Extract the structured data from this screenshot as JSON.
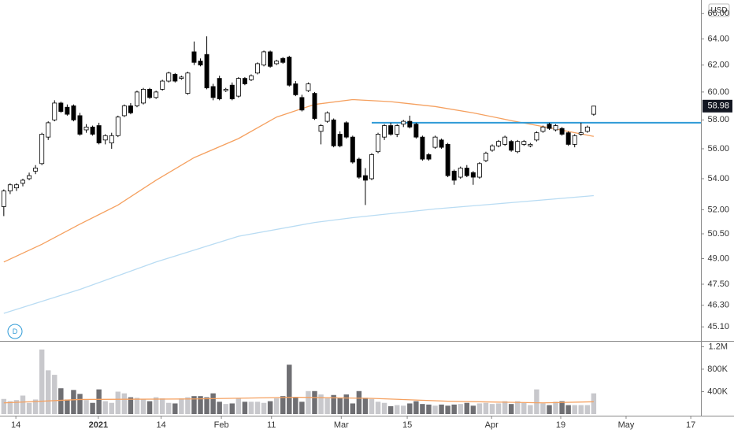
{
  "chart_data": {
    "type": "candlestick",
    "currency": "USD",
    "interval": "D",
    "log_scale": true,
    "grid": false,
    "last_price": 58.98,
    "xlim": [
      -0.6,
      109.9
    ],
    "xticks": [
      {
        "value": 1.9,
        "label": "14"
      },
      {
        "value": 14.9,
        "label": "2021"
      },
      {
        "value": 24.8,
        "label": "14"
      },
      {
        "value": 34.3,
        "label": "Feb"
      },
      {
        "value": 42.2,
        "label": "11"
      },
      {
        "value": 53.2,
        "label": "Mar"
      },
      {
        "value": 63.6,
        "label": "15"
      },
      {
        "value": 76.9,
        "label": "Apr"
      },
      {
        "value": 87.8,
        "label": "19"
      },
      {
        "value": 98.1,
        "label": "May"
      },
      {
        "value": 108.3,
        "label": "17"
      }
    ],
    "ylim": [
      44.38,
      67.1
    ],
    "yticks": [
      {
        "value": 45.1,
        "label": "45.10"
      },
      {
        "value": 46.3,
        "label": "46.30"
      },
      {
        "value": 47.5,
        "label": "47.50"
      },
      {
        "value": 49,
        "label": "49.00"
      },
      {
        "value": 50.5,
        "label": "50.50"
      },
      {
        "value": 52,
        "label": "52.00"
      },
      {
        "value": 54,
        "label": "54.00"
      },
      {
        "value": 56,
        "label": "56.00"
      },
      {
        "value": 58,
        "label": "58.00"
      },
      {
        "value": 60,
        "label": "60.00"
      },
      {
        "value": 62,
        "label": "62.00"
      },
      {
        "value": 64,
        "label": "64.00"
      },
      {
        "value": 66,
        "label": "66.00"
      }
    ],
    "up_color": "#ffffff",
    "down_color": "#000000",
    "open": [
      52.2,
      53.2,
      53.4,
      53.7,
      54.0,
      54.5,
      55.0,
      56.8,
      58.0,
      59.2,
      58.9,
      59.0,
      58.3,
      57.3,
      57.5,
      57.6,
      56.6,
      56.4,
      56.9,
      58.3,
      59.0,
      59.0,
      59.2,
      60.2,
      59.6,
      60.2,
      60.8,
      61.3,
      61.0,
      59.9,
      63.0,
      62.3,
      62.8,
      60.4,
      61.0,
      60.1,
      60.5,
      59.7,
      61.0,
      60.9,
      61.4,
      62.0,
      63.0,
      62.1,
      62.5,
      62.6,
      60.6,
      59.6,
      60.1,
      59.9,
      57.2,
      57.9,
      58.0,
      57.0,
      57.8,
      56.8,
      55.3,
      54.2,
      54.0,
      55.8,
      56.8,
      57.6,
      57.0,
      57.7,
      57.9,
      57.7,
      56.8,
      55.6,
      56.1,
      56.6,
      56.3,
      54.5,
      54.1,
      54.7,
      54.4,
      54.1,
      55.2,
      55.9,
      56.2,
      56.3,
      56.5,
      55.8,
      56.3,
      56.2,
      56.6,
      57.2,
      57.7,
      57.3,
      57.4,
      57.1,
      56.3,
      57.0,
      57.2,
      58.4
    ],
    "high": [
      53.3,
      53.7,
      53.7,
      54.0,
      54.4,
      54.9,
      57.1,
      57.9,
      59.4,
      59.3,
      59.1,
      59.1,
      58.5,
      57.7,
      57.6,
      57.8,
      57.0,
      57.1,
      58.3,
      59.1,
      59.2,
      60.1,
      60.3,
      60.3,
      60.1,
      60.9,
      61.5,
      61.4,
      61.2,
      61.5,
      63.8,
      62.5,
      64.2,
      60.6,
      61.2,
      60.3,
      60.7,
      61.1,
      61.1,
      61.3,
      62.2,
      63.1,
      63.1,
      62.4,
      62.6,
      62.7,
      60.8,
      59.8,
      60.7,
      60.0,
      57.7,
      58.6,
      58.1,
      57.2,
      57.9,
      56.9,
      55.4,
      54.7,
      55.7,
      57.1,
      57.7,
      57.8,
      57.7,
      58.0,
      58.3,
      57.8,
      56.9,
      55.7,
      56.9,
      56.7,
      56.4,
      54.6,
      54.8,
      54.9,
      54.5,
      55.1,
      55.8,
      56.3,
      56.6,
      56.9,
      56.6,
      56.6,
      56.6,
      56.4,
      57.2,
      57.6,
      57.8,
      57.7,
      57.5,
      57.2,
      57.0,
      57.8,
      57.6,
      59.0
    ],
    "low": [
      51.6,
      53.0,
      53.2,
      53.5,
      53.9,
      54.3,
      54.9,
      56.6,
      57.9,
      58.5,
      58.3,
      57.9,
      56.9,
      57.1,
      56.9,
      56.3,
      56.3,
      56.0,
      56.8,
      58.2,
      58.4,
      58.9,
      59.1,
      59.5,
      59.5,
      60.1,
      60.7,
      60.7,
      60.9,
      59.8,
      62.0,
      61.9,
      60.2,
      59.4,
      59.4,
      60.0,
      59.4,
      59.6,
      60.5,
      60.8,
      61.3,
      61.9,
      61.8,
      62.0,
      62.1,
      60.4,
      59.7,
      58.6,
      60.0,
      58.0,
      56.3,
      57.8,
      56.1,
      56.1,
      56.7,
      55.0,
      54.0,
      52.3,
      53.9,
      55.7,
      56.6,
      56.9,
      56.8,
      57.5,
      57.4,
      56.7,
      55.2,
      55.2,
      56.0,
      56.0,
      54.1,
      53.6,
      54.0,
      54.1,
      53.6,
      54.0,
      55.1,
      55.8,
      56.1,
      56.2,
      55.8,
      55.7,
      56.2,
      56.1,
      56.5,
      57.1,
      57.3,
      57.2,
      56.9,
      56.2,
      56.1,
      56.9,
      57.1,
      58.3
    ],
    "close": [
      53.2,
      53.6,
      53.6,
      53.9,
      54.2,
      54.7,
      57.0,
      57.8,
      59.2,
      58.6,
      58.4,
      58.0,
      57.0,
      57.5,
      57.0,
      56.4,
      56.9,
      56.9,
      58.2,
      59.0,
      58.5,
      60.0,
      60.2,
      59.6,
      60.0,
      60.8,
      61.4,
      60.8,
      61.1,
      61.4,
      62.2,
      62.0,
      60.3,
      59.6,
      59.5,
      60.2,
      59.5,
      61.0,
      60.6,
      61.2,
      62.1,
      63.0,
      61.9,
      62.3,
      62.2,
      60.5,
      59.8,
      58.7,
      60.6,
      58.1,
      57.6,
      58.5,
      56.2,
      56.2,
      56.8,
      55.1,
      54.1,
      53.9,
      55.6,
      57.0,
      57.6,
      57.0,
      57.6,
      57.9,
      57.5,
      56.8,
      55.3,
      55.3,
      56.8,
      56.1,
      54.2,
      53.9,
      54.7,
      54.2,
      54.1,
      55.0,
      55.7,
      56.2,
      56.5,
      56.8,
      55.9,
      56.5,
      56.5,
      56.3,
      57.1,
      57.5,
      57.4,
      57.6,
      57.0,
      56.3,
      56.9,
      57.1,
      57.5,
      58.98
    ],
    "moving_averages": [
      {
        "color": "#f5a05f",
        "x": [
          0,
          6,
          12,
          18,
          24,
          30,
          37,
          43,
          49,
          55,
          61,
          68,
          74,
          80,
          86,
          93
        ],
        "values": [
          48.8,
          49.86,
          51.1,
          52.3,
          53.9,
          55.4,
          56.7,
          58.2,
          59.1,
          59.45,
          59.3,
          58.95,
          58.5,
          57.95,
          57.45,
          56.85
        ]
      },
      {
        "color": "#b9dcf3",
        "x": [
          0,
          12,
          24,
          37,
          49,
          55,
          68,
          80,
          93
        ],
        "values": [
          45.85,
          47.2,
          48.8,
          50.35,
          51.2,
          51.5,
          52.05,
          52.45,
          52.9
        ]
      }
    ],
    "horizontal_line": {
      "value": 57.8,
      "x_start": 58,
      "color": "#2e9ad6"
    },
    "volume": {
      "ylim": [
        0,
        1290000
      ],
      "yticks": [
        {
          "value": 400000,
          "label": "400K"
        },
        {
          "value": 800000,
          "label": "800K"
        },
        {
          "value": 1200000,
          "label": "1.2M"
        }
      ],
      "up_color": "#c8c8cc",
      "down_color": "#6f6f73",
      "values": [
        270000,
        230000,
        250000,
        330000,
        200000,
        260000,
        1150000,
        780000,
        700000,
        460000,
        260000,
        430000,
        360000,
        250000,
        200000,
        440000,
        230000,
        200000,
        400000,
        370000,
        300000,
        290000,
        260000,
        230000,
        300000,
        280000,
        200000,
        190000,
        280000,
        300000,
        320000,
        320000,
        300000,
        370000,
        220000,
        180000,
        190000,
        280000,
        220000,
        220000,
        220000,
        200000,
        230000,
        280000,
        320000,
        880000,
        300000,
        220000,
        410000,
        410000,
        350000,
        280000,
        340000,
        280000,
        350000,
        190000,
        410000,
        290000,
        270000,
        220000,
        200000,
        140000,
        160000,
        150000,
        190000,
        230000,
        180000,
        170000,
        150000,
        170000,
        150000,
        170000,
        180000,
        200000,
        150000,
        190000,
        200000,
        180000,
        190000,
        230000,
        180000,
        230000,
        200000,
        160000,
        440000,
        190000,
        160000,
        220000,
        230000,
        160000,
        160000,
        160000,
        160000,
        370000
      ],
      "ma": {
        "color": "#f5a05f",
        "x": [
          0,
          12,
          30,
          46,
          58,
          70,
          85,
          93
        ],
        "values": [
          200000,
          260000,
          270000,
          300000,
          280000,
          230000,
          200000,
          220000
        ]
      }
    }
  }
}
